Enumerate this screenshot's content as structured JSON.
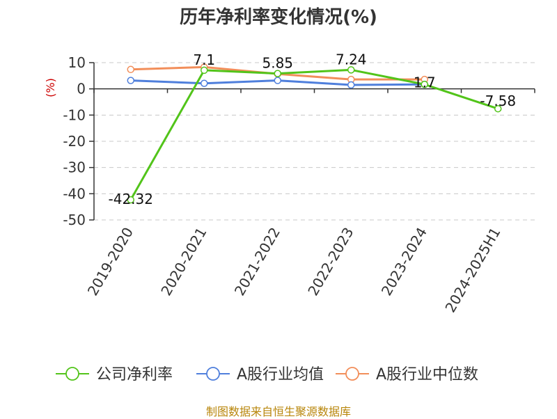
{
  "chart_data": {
    "type": "line",
    "title": "历年净利率变化情况(%)",
    "ylabel": "(%)",
    "ylim": [
      -50,
      10
    ],
    "yticks": [
      10,
      0,
      -10,
      -20,
      -30,
      -40,
      -50
    ],
    "grid": true,
    "legend_position": "bottom",
    "categories": [
      "2019-2020",
      "2020-2021",
      "2021-2022",
      "2022-2023",
      "2023-2024",
      "2024-2025H1"
    ],
    "series": [
      {
        "name": "公司净利率",
        "color": "#52c41a",
        "values": [
          -42.32,
          7.1,
          5.85,
          7.24,
          1.7,
          -7.58
        ],
        "labels": [
          "-42.32",
          "7.1",
          "5.85",
          "7.24",
          "1.7",
          "-7.58"
        ]
      },
      {
        "name": "A股行业均值",
        "color": "#4f7fdc",
        "values": [
          3.2,
          2.1,
          3.2,
          1.5,
          1.7,
          null
        ]
      },
      {
        "name": "A股行业中位数",
        "color": "#f28e5a",
        "values": [
          7.4,
          8.3,
          5.7,
          3.6,
          3.6,
          null
        ]
      }
    ]
  },
  "source": "制图数据来自恒生聚源数据库"
}
